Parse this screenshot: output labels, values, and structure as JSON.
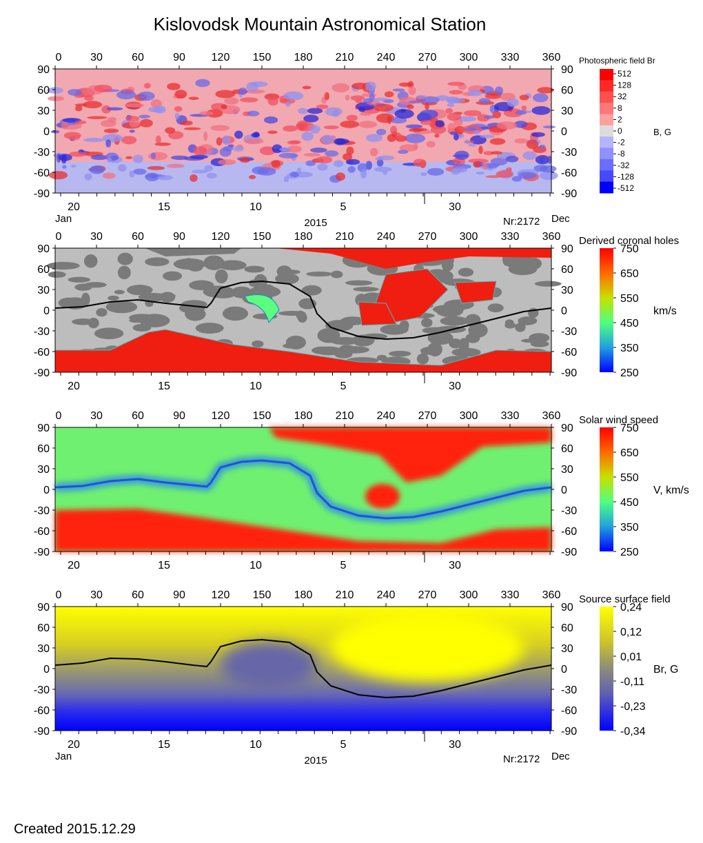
{
  "title": "Kislovodsk Mountain Astronomical Station",
  "created": "Created  2015.12.29",
  "chart_data": [
    {
      "type": "heatmap",
      "panel": "photospheric",
      "legend_title": "Photospheric field Br",
      "unit_label": "B, G",
      "colorbar_ticks": [
        "512",
        "128",
        "32",
        "8",
        "2",
        "0",
        "-2",
        "-8",
        "-32",
        "-128",
        "-512"
      ],
      "colorbar_colors": [
        "#ff0000",
        "#ff2828",
        "#ff5050",
        "#ff7878",
        "#ffa0a0",
        "#dcdcdc",
        "#b4b4ff",
        "#9090ff",
        "#6c6cff",
        "#4848ff",
        "#0000ff"
      ],
      "x_ticks": [
        "0",
        "30",
        "60",
        "90",
        "120",
        "150",
        "180",
        "210",
        "240",
        "270",
        "300",
        "330",
        "360"
      ],
      "y_ticks": [
        "90",
        "60",
        "30",
        "0",
        "-30",
        "-60",
        "-90"
      ],
      "xlim": [
        0,
        360
      ],
      "ylim": [
        -90,
        90
      ],
      "date_ticks": [
        "20",
        "15",
        "10",
        "5",
        "30"
      ],
      "month_start": "Jan",
      "month_end": "Dec",
      "year": "2015",
      "rotation": "Nr:2172",
      "latitude_bands": [
        {
          "lat_range": [
            60,
            90
          ],
          "polarity": "positive"
        },
        {
          "lat_range": [
            0,
            60
          ],
          "polarity": "mixed"
        },
        {
          "lat_range": [
            -45,
            0
          ],
          "polarity": "mixed"
        },
        {
          "lat_range": [
            -90,
            -45
          ],
          "polarity": "negative"
        }
      ]
    },
    {
      "type": "heatmap",
      "panel": "coronal_holes",
      "legend_title": "Derived coronal holes",
      "unit_label": "km/s",
      "colorbar_ticks": [
        "750",
        "650",
        "550",
        "450",
        "350",
        "250"
      ],
      "colorbar_colors": [
        "#ff0000",
        "#ff5a00",
        "#e0c000",
        "#60ff60",
        "#20c0c0",
        "#0000ff"
      ],
      "x_ticks": [
        "0",
        "30",
        "60",
        "90",
        "120",
        "150",
        "180",
        "210",
        "240",
        "270",
        "300",
        "330",
        "360"
      ],
      "y_ticks": [
        "90",
        "60",
        "30",
        "0",
        "-30",
        "-60",
        "-90"
      ],
      "xlim": [
        0,
        360
      ],
      "ylim": [
        -90,
        90
      ],
      "date_ticks": [
        "20",
        "15",
        "10",
        "5",
        "30"
      ],
      "neutral_line": [
        [
          0,
          3
        ],
        [
          20,
          5
        ],
        [
          40,
          12
        ],
        [
          60,
          15
        ],
        [
          80,
          10
        ],
        [
          100,
          6
        ],
        [
          110,
          4
        ],
        [
          113,
          10
        ],
        [
          120,
          32
        ],
        [
          135,
          40
        ],
        [
          150,
          42
        ],
        [
          170,
          38
        ],
        [
          185,
          20
        ],
        [
          190,
          -5
        ],
        [
          200,
          -25
        ],
        [
          220,
          -38
        ],
        [
          240,
          -42
        ],
        [
          260,
          -40
        ],
        [
          280,
          -32
        ],
        [
          300,
          -22
        ],
        [
          320,
          -12
        ],
        [
          340,
          -2
        ],
        [
          360,
          3
        ]
      ]
    },
    {
      "type": "heatmap",
      "panel": "solar_wind",
      "legend_title": "Solar wind speed",
      "unit_label": "V, km/s",
      "colorbar_ticks": [
        "750",
        "650",
        "550",
        "450",
        "350",
        "250"
      ],
      "colorbar_colors": [
        "#ff0000",
        "#ff5a00",
        "#e0c000",
        "#60ff60",
        "#20c0c0",
        "#0000ff"
      ],
      "x_ticks": [
        "0",
        "30",
        "60",
        "90",
        "120",
        "150",
        "180",
        "210",
        "240",
        "270",
        "300",
        "330",
        "360"
      ],
      "y_ticks": [
        "90",
        "60",
        "30",
        "0",
        "-30",
        "-60",
        "-90"
      ],
      "xlim": [
        0,
        360
      ],
      "ylim": [
        -90,
        90
      ],
      "date_ticks": [
        "20",
        "15",
        "10",
        "5",
        "30"
      ],
      "neutral_line": [
        [
          0,
          3
        ],
        [
          20,
          5
        ],
        [
          40,
          12
        ],
        [
          60,
          15
        ],
        [
          80,
          10
        ],
        [
          100,
          6
        ],
        [
          110,
          4
        ],
        [
          113,
          10
        ],
        [
          120,
          32
        ],
        [
          135,
          40
        ],
        [
          150,
          42
        ],
        [
          170,
          38
        ],
        [
          185,
          20
        ],
        [
          190,
          -5
        ],
        [
          200,
          -25
        ],
        [
          220,
          -38
        ],
        [
          240,
          -42
        ],
        [
          260,
          -40
        ],
        [
          280,
          -32
        ],
        [
          300,
          -22
        ],
        [
          320,
          -12
        ],
        [
          340,
          -2
        ],
        [
          360,
          3
        ]
      ]
    },
    {
      "type": "heatmap",
      "panel": "source_surface",
      "legend_title": "Source surface field",
      "unit_label": "Br, G",
      "colorbar_ticks": [
        "0,24",
        "0,12",
        "0,01",
        "-0,11",
        "-0,23",
        "-0,34"
      ],
      "colorbar_colors": [
        "#ffff00",
        "#c8c030",
        "#8c8c7c",
        "#6e6ea0",
        "#3c3cd0",
        "#0000ff"
      ],
      "x_ticks": [
        "0",
        "30",
        "60",
        "90",
        "120",
        "150",
        "180",
        "210",
        "240",
        "270",
        "300",
        "330",
        "360"
      ],
      "y_ticks": [
        "90",
        "60",
        "30",
        "0",
        "-30",
        "-60",
        "-90"
      ],
      "xlim": [
        0,
        360
      ],
      "ylim": [
        -90,
        90
      ],
      "date_ticks": [
        "20",
        "15",
        "10",
        "5",
        "30"
      ],
      "month_start": "Jan",
      "month_end": "Dec",
      "year": "2015",
      "rotation": "Nr:2172",
      "neutral_line": [
        [
          0,
          5
        ],
        [
          20,
          8
        ],
        [
          40,
          15
        ],
        [
          60,
          14
        ],
        [
          80,
          10
        ],
        [
          100,
          5
        ],
        [
          110,
          3
        ],
        [
          113,
          10
        ],
        [
          120,
          32
        ],
        [
          135,
          40
        ],
        [
          150,
          42
        ],
        [
          170,
          38
        ],
        [
          185,
          20
        ],
        [
          190,
          -5
        ],
        [
          200,
          -25
        ],
        [
          220,
          -38
        ],
        [
          240,
          -42
        ],
        [
          260,
          -40
        ],
        [
          280,
          -32
        ],
        [
          300,
          -22
        ],
        [
          320,
          -12
        ],
        [
          340,
          -2
        ],
        [
          360,
          5
        ]
      ]
    }
  ]
}
